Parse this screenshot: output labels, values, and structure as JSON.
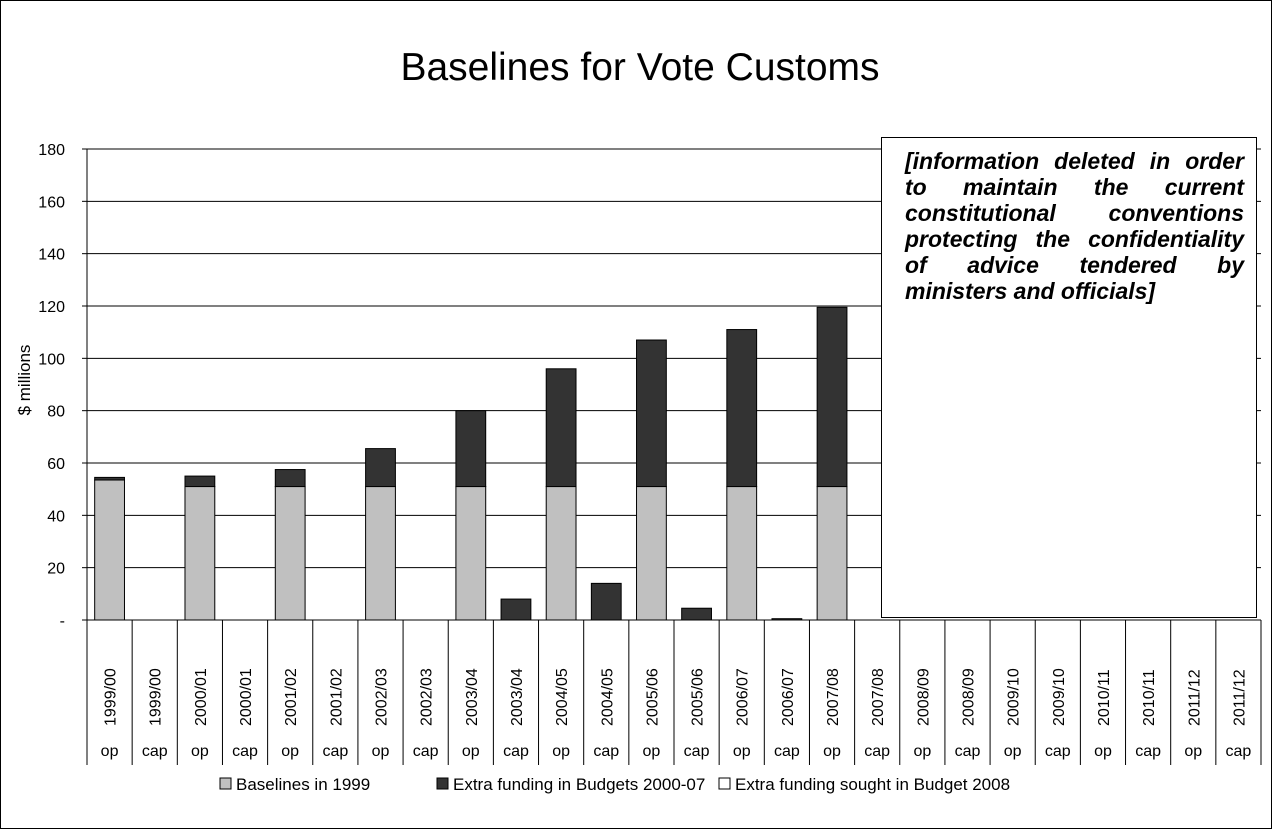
{
  "chart_data": {
    "type": "bar",
    "stacked": true,
    "title": "Baselines for Vote Customs",
    "ylabel": "$ millions",
    "xlabel": "",
    "ylim": [
      0,
      180
    ],
    "yticks": [
      0,
      20,
      40,
      60,
      80,
      100,
      120,
      140,
      160,
      180
    ],
    "ytick_labels": [
      "-",
      "20",
      "40",
      "60",
      "80",
      "100",
      "120",
      "140",
      "160",
      "180"
    ],
    "grid": true,
    "legend_position": "bottom",
    "categories": [
      "1999/00",
      "1999/00",
      "2000/01",
      "2000/01",
      "2001/02",
      "2001/02",
      "2002/03",
      "2002/03",
      "2003/04",
      "2003/04",
      "2004/05",
      "2004/05",
      "2005/06",
      "2005/06",
      "2006/07",
      "2006/07",
      "2007/08",
      "2007/08",
      "2008/09",
      "2008/09",
      "2009/10",
      "2009/10",
      "2010/11",
      "2010/11",
      "2011/12",
      "2011/12"
    ],
    "subcategories": [
      "op",
      "cap",
      "op",
      "cap",
      "op",
      "cap",
      "op",
      "cap",
      "op",
      "cap",
      "op",
      "cap",
      "op",
      "cap",
      "op",
      "cap",
      "op",
      "cap",
      "op",
      "cap",
      "op",
      "cap",
      "op",
      "cap",
      "op",
      "cap"
    ],
    "series": [
      {
        "name": "Baselines in 1999",
        "color": "#c0c0c0",
        "values": [
          53.5,
          0,
          51,
          0,
          51,
          0,
          51,
          0,
          51,
          0,
          51,
          0,
          51,
          0,
          51,
          0,
          51,
          0,
          0,
          0,
          0,
          0,
          0,
          0,
          0,
          0
        ]
      },
      {
        "name": "Extra funding in Budgets 2000-07",
        "color": "#333333",
        "values": [
          1,
          0,
          4,
          0,
          6.5,
          0,
          14.5,
          0,
          29,
          8,
          45,
          14,
          56,
          4.5,
          60,
          0.5,
          68.5,
          0,
          0,
          0,
          0,
          0,
          0,
          0,
          0,
          0
        ]
      },
      {
        "name": "Extra funding sought in Budget 2008",
        "color": "#ffffff",
        "values": [
          0,
          0,
          0,
          0,
          0,
          0,
          0,
          0,
          0,
          0,
          0,
          0,
          0,
          0,
          0,
          0,
          0,
          0,
          0,
          0,
          0,
          0,
          0,
          0,
          0,
          0
        ]
      }
    ],
    "annotation": "[information deleted in order to maintain the current constitutional conventions protecting the confidentiality of advice tendered by ministers and officials]"
  }
}
